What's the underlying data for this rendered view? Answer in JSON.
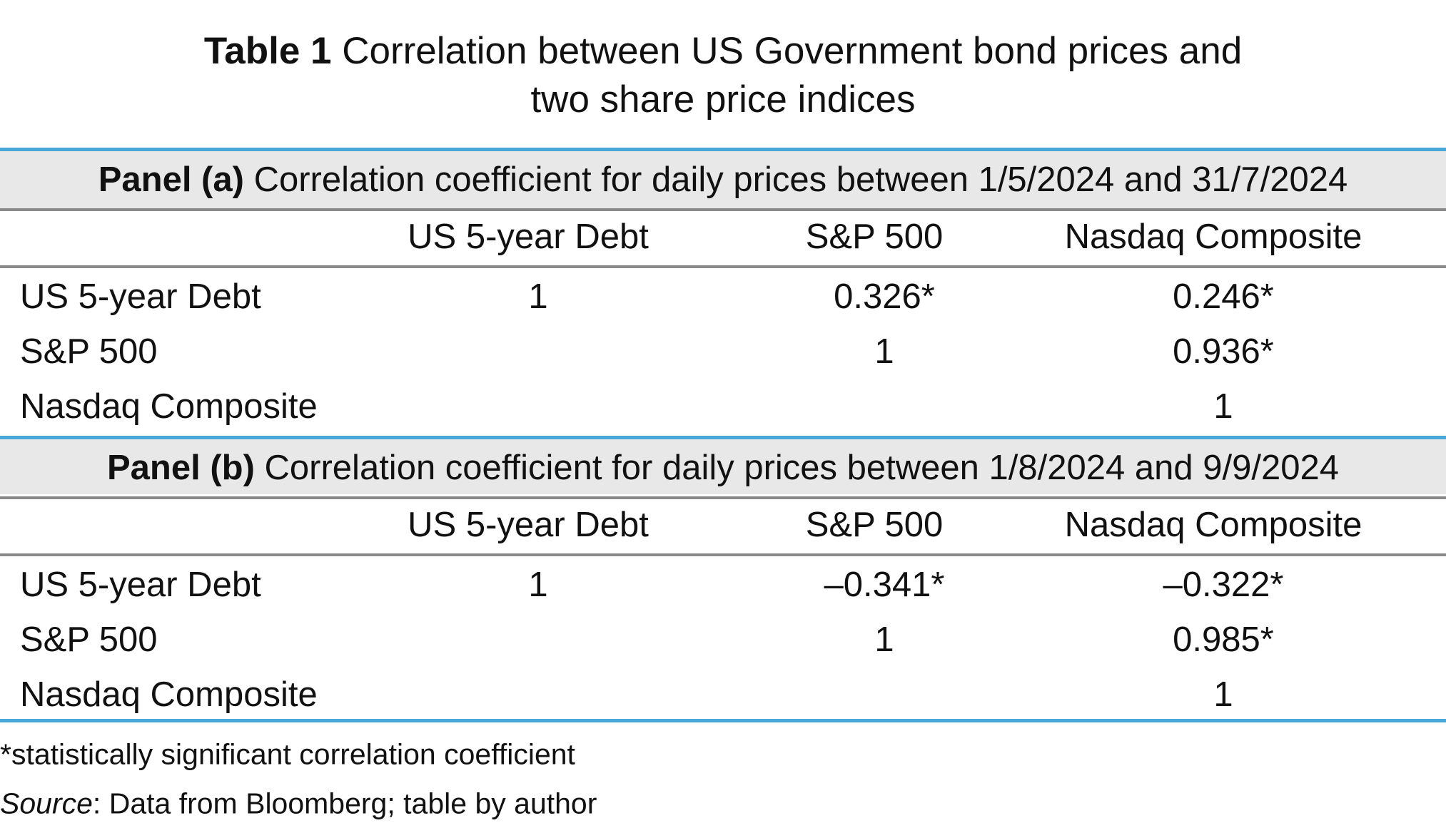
{
  "title": {
    "label": "Table 1",
    "text": "Correlation between US Government bond prices and two share price indices"
  },
  "panels": [
    {
      "label": "Panel (a)",
      "caption": "Correlation coefficient for daily prices between 1/5/2024 and 31/7/2024",
      "columns": [
        "US 5-year Debt",
        "S&P 500",
        "Nasdaq Composite"
      ],
      "rows": [
        {
          "label": "US 5-year Debt",
          "cells": [
            "1",
            "0.326*",
            "0.246*"
          ]
        },
        {
          "label": "S&P 500",
          "cells": [
            null,
            "1",
            "0.936*"
          ]
        },
        {
          "label": "Nasdaq Composite",
          "cells": [
            null,
            null,
            "1"
          ]
        }
      ]
    },
    {
      "label": "Panel (b)",
      "caption": "Correlation coefficient for daily prices between 1/8/2024 and 9/9/2024",
      "columns": [
        "US 5-year Debt",
        "S&P 500",
        "Nasdaq Composite"
      ],
      "rows": [
        {
          "label": "US 5-year Debt",
          "cells": [
            "1",
            "–0.341*",
            "–0.322*"
          ]
        },
        {
          "label": "S&P 500",
          "cells": [
            null,
            "1",
            "0.985*"
          ]
        },
        {
          "label": "Nasdaq Composite",
          "cells": [
            null,
            null,
            "1"
          ]
        }
      ]
    }
  ],
  "footnote": "*statistically significant correlation coefficient",
  "source": {
    "label": "Source",
    "text": ": Data from Bloomberg; table by author"
  }
}
